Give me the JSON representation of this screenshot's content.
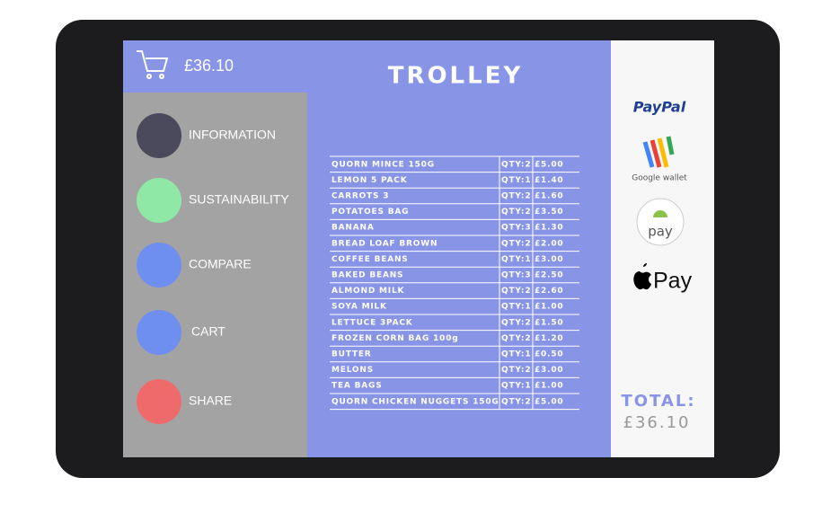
{
  "header": {
    "cart_total": "£36.10",
    "title": "TROLLEY"
  },
  "menu": [
    "INFORMATION",
    "SUSTAINABILITY",
    "COMPARE",
    "CART",
    "SHARE"
  ],
  "table": {
    "rows": [
      [
        "QUORN MINCE 150G",
        "QTY:2",
        "£5.00"
      ],
      [
        "LEMON 5 PACK",
        "QTY:1",
        "£1.40"
      ],
      [
        "CARROTS 3",
        "QTY:2",
        "£1.60"
      ],
      [
        "POTATOES BAG",
        "QTY:2",
        "£3.50"
      ],
      [
        "BANANA",
        "QTY:3",
        "£1.30"
      ],
      [
        "BREAD LOAF BROWN",
        "QTY:2",
        "£2.00"
      ],
      [
        "COFFEE BEANS",
        "QTY:1",
        "£3.00"
      ],
      [
        "BAKED BEANS",
        "QTY:3",
        "£2.50"
      ],
      [
        "ALMOND MILK",
        "QTY:2",
        "£2.60"
      ],
      [
        "SOYA MILK",
        "QTY:1",
        "£1.00"
      ],
      [
        "LETTUCE 3PACK",
        "QTY:2",
        "£1.50"
      ],
      [
        "FROZEN CORN BAG 100g",
        "QTY:2",
        "£1.20"
      ],
      [
        "BUTTER",
        "QTY:1",
        "£0.50"
      ],
      [
        "MELONS",
        "QTY:2",
        "£3.00"
      ],
      [
        "TEA BAGS",
        "QTY:1",
        "£1.00"
      ],
      [
        "QUORN CHICKEN NUGGETS 150G",
        "QTY:2",
        "£5.00"
      ]
    ]
  },
  "payments": {
    "paypal": "PayPal",
    "google": "Google wallet",
    "android": "pay",
    "apple": "Pay"
  },
  "total": {
    "label": "TOTAL:",
    "value": "£36.10"
  }
}
